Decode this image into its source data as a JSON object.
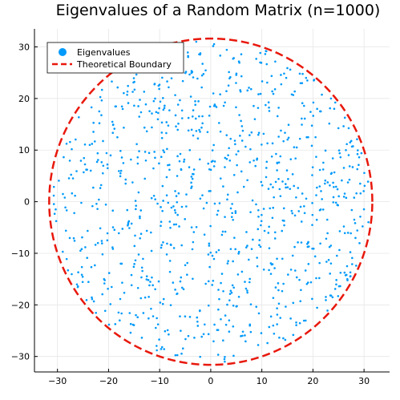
{
  "chart_data": {
    "type": "scatter",
    "title": "Eigenvalues of a Random Matrix (n=1000)",
    "xlabel": "",
    "ylabel": "",
    "xlim": [
      -34.5,
      35
    ],
    "ylim": [
      -33,
      33.5
    ],
    "x_ticks": [
      -30,
      -20,
      -10,
      0,
      10,
      20,
      30
    ],
    "y_ticks": [
      -30,
      -20,
      -10,
      0,
      10,
      20,
      30
    ],
    "x_tick_labels": [
      "−30",
      "−20",
      "−10",
      "0",
      "10",
      "20",
      "30"
    ],
    "y_tick_labels": [
      "−30",
      "−20",
      "−10",
      "0",
      "10",
      "20",
      "30"
    ],
    "grid": true,
    "legend_position": "top-left",
    "series": [
      {
        "name": "Eigenvalues",
        "kind": "scatter",
        "color": "#009AFA",
        "point_count": 1000,
        "distribution": "uniform disk centered at origin, radius 31.62",
        "note": "individual points are generated to fill the disk; exact point coordinates are not legible"
      },
      {
        "name": "Theoretical Boundary",
        "kind": "circle",
        "color": "#E8180C",
        "style": "dashed",
        "center": [
          0,
          0
        ],
        "radius": 31.62
      }
    ]
  }
}
